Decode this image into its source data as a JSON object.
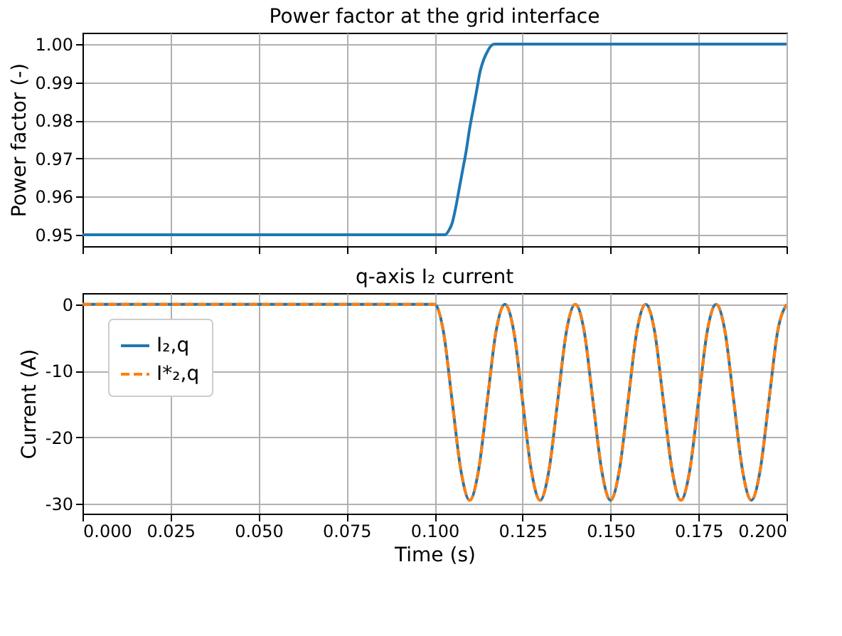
{
  "chart_data": [
    {
      "type": "line",
      "title": "Power factor at the grid interface",
      "ylabel": "Power factor (-)",
      "color": "#1f77b4",
      "line_style": "solid",
      "marker": "none",
      "grid": true,
      "tick_labels": "y",
      "x": [
        0,
        0.1,
        0.103,
        0.104,
        0.105,
        0.106,
        0.107,
        0.108,
        0.109,
        0.11,
        0.111,
        0.112,
        0.113,
        0.114,
        0.115,
        0.116,
        0.117,
        0.2
      ],
      "values": [
        0.95,
        0.95,
        0.95,
        0.951,
        0.953,
        0.957,
        0.962,
        0.967,
        0.972,
        0.978,
        0.983,
        0.988,
        0.993,
        0.996,
        0.998,
        0.9995,
        1.0,
        1.0
      ],
      "xlim": [
        0,
        0.2
      ],
      "xticks": [
        {
          "value": 0,
          "label": null
        },
        {
          "value": 0.025,
          "label": null
        },
        {
          "value": 0.05,
          "label": null
        },
        {
          "value": 0.075,
          "label": null
        },
        {
          "value": 0.1,
          "label": null
        },
        {
          "value": 0.125,
          "label": null
        },
        {
          "value": 0.15,
          "label": null
        },
        {
          "value": 0.175,
          "label": null
        },
        {
          "value": 0.2,
          "label": null
        }
      ],
      "ylim": [
        0.947,
        1.003
      ],
      "yticks": [
        0.95,
        0.96,
        0.97,
        0.98,
        0.99,
        {
          "value": 1,
          "label": "1.00"
        }
      ]
    },
    {
      "type": "line",
      "title": "q-axis I₂ current",
      "xlabel": "Time (s)",
      "ylabel": "Current (A)",
      "grid": true,
      "legend": "top left",
      "marker": "none",
      "x": [
        0,
        0.1,
        0.1025,
        0.105,
        0.1075,
        0.11,
        0.1125,
        0.115,
        0.1175,
        0.12,
        0.1225,
        0.125,
        0.1275,
        0.13,
        0.1325,
        0.135,
        0.1375,
        0.14,
        0.1425,
        0.145,
        0.1475,
        0.15,
        0.1525,
        0.155,
        0.1575,
        0.16,
        0.1625,
        0.165,
        0.1675,
        0.17,
        0.1725,
        0.175,
        0.1775,
        0.18,
        0.1825,
        0.185,
        0.1875,
        0.19,
        0.1925,
        0.195,
        0.1975,
        0.2
      ],
      "series": [
        {
          "name": "I₂,q",
          "color": "#1f77b4",
          "line_style": "solid",
          "values": [
            0,
            0,
            -4,
            -14.5,
            -25,
            -29.5,
            -25,
            -14.5,
            -4,
            0,
            -4,
            -14.5,
            -25,
            -29.5,
            -25,
            -14.5,
            -4,
            0,
            -4,
            -14.5,
            -25,
            -29.5,
            -25,
            -14.5,
            -4,
            0,
            -4,
            -14.5,
            -25,
            -29.5,
            -25,
            -14.5,
            -4,
            0,
            -4,
            -14.5,
            -25,
            -29.5,
            -25,
            -14.5,
            -4,
            0
          ]
        },
        {
          "name": "I*₂,q",
          "color": "#ff7f0e",
          "line_style": "dashed",
          "values": [
            0,
            0,
            -4,
            -14.5,
            -25,
            -29.5,
            -25,
            -14.5,
            -4,
            0,
            -4,
            -14.5,
            -25,
            -29.5,
            -25,
            -14.5,
            -4,
            0,
            -4,
            -14.5,
            -25,
            -29.5,
            -25,
            -14.5,
            -4,
            0,
            -4,
            -14.5,
            -25,
            -29.5,
            -25,
            -14.5,
            -4,
            0,
            -4,
            -14.5,
            -25,
            -29.5,
            -25,
            -14.5,
            -4,
            0
          ]
        }
      ],
      "xlim": [
        0,
        0.2
      ],
      "xticks": [
        {
          "value": 0,
          "label": "0.000"
        },
        {
          "value": 0.025,
          "label": "0.025"
        },
        {
          "value": 0.05,
          "label": "0.050"
        },
        {
          "value": 0.075,
          "label": "0.075"
        },
        {
          "value": 0.1,
          "label": "0.100"
        },
        {
          "value": 0.125,
          "label": "0.125"
        },
        {
          "value": 0.15,
          "label": "0.150"
        },
        {
          "value": 0.175,
          "label": "0.175"
        },
        {
          "value": 0.2,
          "label": "0.200"
        }
      ],
      "ylim": [
        -31.5,
        1.7
      ],
      "yticks": [
        -30,
        -20,
        -10,
        0
      ]
    }
  ]
}
